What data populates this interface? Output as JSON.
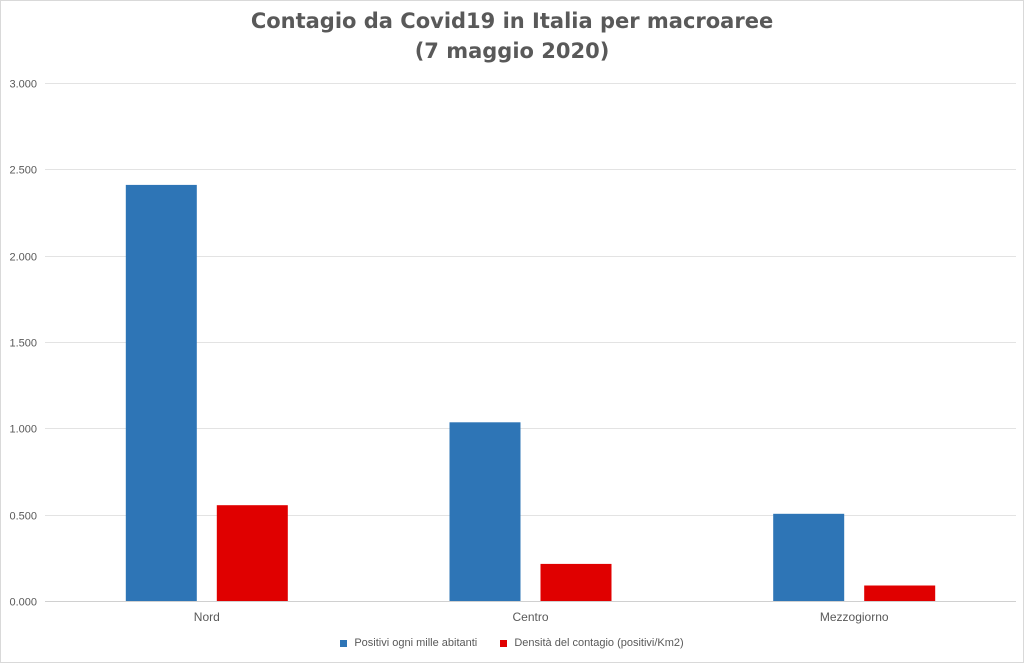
{
  "chart_data": {
    "type": "bar",
    "title": [
      "Contagio da Covid19 in Italia per macroaree",
      "(7 maggio 2020)"
    ],
    "categories": [
      "Nord",
      "Centro",
      "Mezzogiorno"
    ],
    "series": [
      {
        "name": "Positivi ogni mille abitanti",
        "color": "#2e75b6",
        "values": [
          2.41,
          1.035,
          0.505
        ]
      },
      {
        "name": "Densità del contagio (positivi/Km2)",
        "color": "#e00000",
        "values": [
          0.555,
          0.215,
          0.09
        ]
      }
    ],
    "y_ticks": [
      "0.000",
      "0.500",
      "1.000",
      "1.500",
      "2.000",
      "2.500",
      "3.000"
    ],
    "ylim": [
      0,
      3
    ],
    "grid": true,
    "legend_position": "bottom"
  }
}
